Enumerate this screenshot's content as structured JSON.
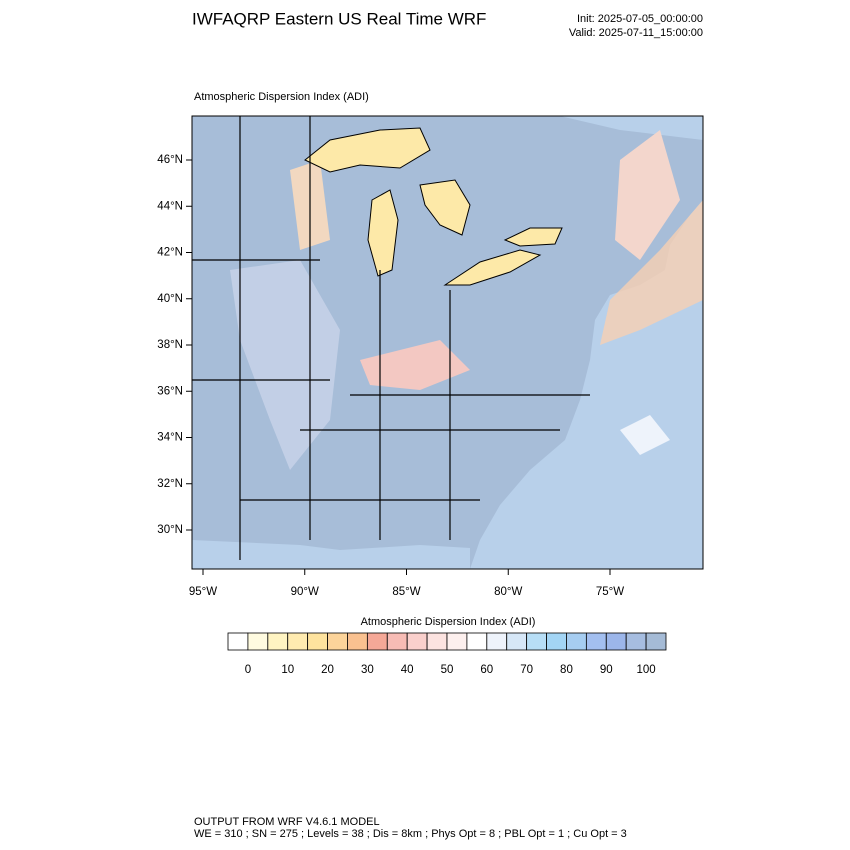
{
  "header": {
    "title": "IWFAQRP Eastern US Real Time WRF",
    "init": "Init: 2025-07-05_00:00:00",
    "valid": "Valid: 2025-07-11_15:00:00"
  },
  "map": {
    "title": "Atmospheric Dispersion Index   (ADI)",
    "lat_labels": [
      "46°N",
      "44°N",
      "42°N",
      "40°N",
      "38°N",
      "36°N",
      "34°N",
      "32°N",
      "30°N"
    ],
    "lon_labels": [
      "95°W",
      "90°W",
      "85°W",
      "80°W",
      "75°W"
    ]
  },
  "colorbar": {
    "title": "Atmospheric Dispersion Index  (ADI)",
    "labels": [
      0,
      10,
      20,
      30,
      40,
      50,
      60,
      70,
      80,
      90,
      100
    ],
    "colors": [
      "#ffffff",
      "#fffbe0",
      "#fff4c2",
      "#ffebb0",
      "#fee39e",
      "#fcd49a",
      "#f9c190",
      "#f5a897",
      "#f7bcb5",
      "#fad0cc",
      "#fce3e0",
      "#fdf0ee",
      "#ffffff",
      "#eef3fb",
      "#d6e7f7",
      "#b7def6",
      "#a3d5f5",
      "#a6cdf1",
      "#a3bff0",
      "#9cb6ea",
      "#a6bde0",
      "#a5bbd6"
    ]
  },
  "footer": {
    "line1": "OUTPUT FROM WRF V4.6.1 MODEL",
    "line2": "WE = 310 ; SN = 275 ; Levels = 38 ; Dis = 8km ; Phys Opt = 8 ; PBL Opt = 1 ; Cu Opt = 3"
  }
}
